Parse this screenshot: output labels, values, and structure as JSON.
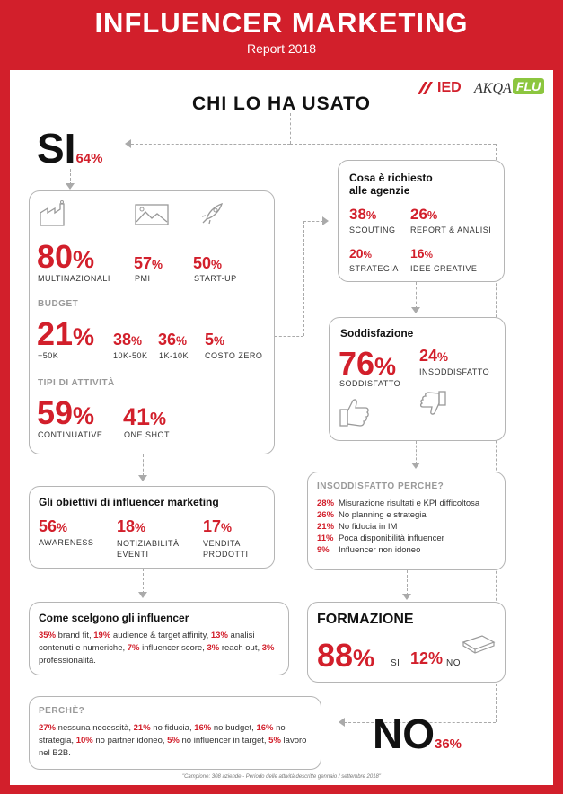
{
  "header": {
    "title": "INFLUENCER MARKETING",
    "subtitle": "Report 2018"
  },
  "logos": {
    "ied": "IED",
    "akqa": "AKQA",
    "flu": "FLU"
  },
  "main_title": "CHI LO HA USATO",
  "si": {
    "word": "SI",
    "pct": "64%"
  },
  "no": {
    "word": "NO",
    "pct": "36%"
  },
  "company_box": {
    "types": [
      {
        "value": "80",
        "label": "MULTINAZIONALI",
        "icon": "factory-icon"
      },
      {
        "value": "57",
        "label": "PMI",
        "icon": "landscape-icon"
      },
      {
        "value": "50",
        "label": "START-UP",
        "icon": "rocket-icon"
      }
    ],
    "budget_title": "BUDGET",
    "budget": [
      {
        "value": "21",
        "label": "+50K"
      },
      {
        "value": "38",
        "label": "10K-50K"
      },
      {
        "value": "36",
        "label": "1K-10K"
      },
      {
        "value": "5",
        "label": "COSTO ZERO"
      }
    ],
    "activity_title": "TIPI DI ATTIVITÀ",
    "activity": [
      {
        "value": "59",
        "label": "CONTINUATIVE"
      },
      {
        "value": "41",
        "label": "ONE SHOT"
      }
    ]
  },
  "agencies": {
    "title": "Cosa è richiesto alle agenzie",
    "items": [
      {
        "value": "38",
        "label": "SCOUTING"
      },
      {
        "value": "26",
        "label": "REPORT & ANALISI"
      },
      {
        "value": "20",
        "label": "STRATEGIA"
      },
      {
        "value": "16",
        "label": "IDEE CREATIVE"
      }
    ]
  },
  "satisfaction": {
    "title": "Soddisfazione",
    "yes_value": "76",
    "yes_label": "SODDISFATTO",
    "no_value": "24",
    "no_label": "INSODDISFATTO"
  },
  "objectives": {
    "title": "Gli obiettivi di influencer marketing",
    "items": [
      {
        "value": "56",
        "label": "AWARENESS"
      },
      {
        "value": "18",
        "label": "NOTIZIABILITÀ EVENTI"
      },
      {
        "value": "17",
        "label": "VENDITA PRODOTTI"
      }
    ]
  },
  "why_unsatisfied": {
    "title": "INSODDISFATTO PERCHÈ?",
    "items": [
      {
        "pct": "28%",
        "text": "Misurazione risultati e KPI difficoltosa"
      },
      {
        "pct": "26%",
        "text": "No planning e strategia"
      },
      {
        "pct": "21%",
        "text": "No fiducia in IM"
      },
      {
        "pct": "11%",
        "text": "Poca disponibilità influencer"
      },
      {
        "pct": "9%",
        "text": "Influencer non idoneo"
      }
    ]
  },
  "choice": {
    "title": "Come scelgono gli influencer",
    "parts": [
      {
        "pct": "35%",
        "text": " brand fit, "
      },
      {
        "pct": "19%",
        "text": " audience & target affinity, "
      },
      {
        "pct": "13%",
        "text": " analisi contenuti e numeriche, "
      },
      {
        "pct": "7%",
        "text": " influencer score, "
      },
      {
        "pct": "3%",
        "text": " reach out, "
      },
      {
        "pct": "3%",
        "text": " professionalità."
      }
    ]
  },
  "training": {
    "title": "FORMAZIONE",
    "yes_value": "88",
    "yes_label": "SI",
    "no_value": "12%",
    "no_label": "NO"
  },
  "why_no": {
    "title": "PERCHÈ?",
    "parts": [
      {
        "pct": "27%",
        "text": " nessuna necessità, "
      },
      {
        "pct": "21%",
        "text": " no fiducia, "
      },
      {
        "pct": "16%",
        "text": " no budget, "
      },
      {
        "pct": "16%",
        "text": " no strategia, "
      },
      {
        "pct": "10%",
        "text": " no partner idoneo, "
      },
      {
        "pct": "5%",
        "text": " no influencer in target, "
      },
      {
        "pct": "5%",
        "text": " lavoro nel B2B."
      }
    ]
  },
  "footnote": "\"Campione: 308 aziende - Periodo delle attività descritte gennaio / settembre 2018\"",
  "colors": {
    "brand_red": "#d21f2b",
    "border": "#b5b5b5",
    "arrow": "#aaaaaa"
  }
}
